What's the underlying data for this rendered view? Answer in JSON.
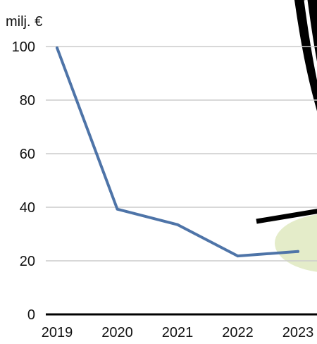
{
  "chart_data": {
    "type": "line",
    "unit_label": "milj. €",
    "categories": [
      "2019",
      "2020",
      "2021",
      "2022",
      "2023"
    ],
    "series": [
      {
        "values": [
          99.5,
          39.3,
          33.5,
          21.8,
          23.5
        ]
      }
    ],
    "y_ticks": [
      "0",
      "20",
      "40",
      "60",
      "80",
      "100"
    ],
    "ylim": [
      0,
      100
    ],
    "grid": true,
    "colors": {
      "line": "#4e74a8",
      "grid": "#cccccc",
      "axis": "#000000",
      "decoration_fill": "#e4ecc9",
      "decoration_stroke": "#000000"
    }
  }
}
